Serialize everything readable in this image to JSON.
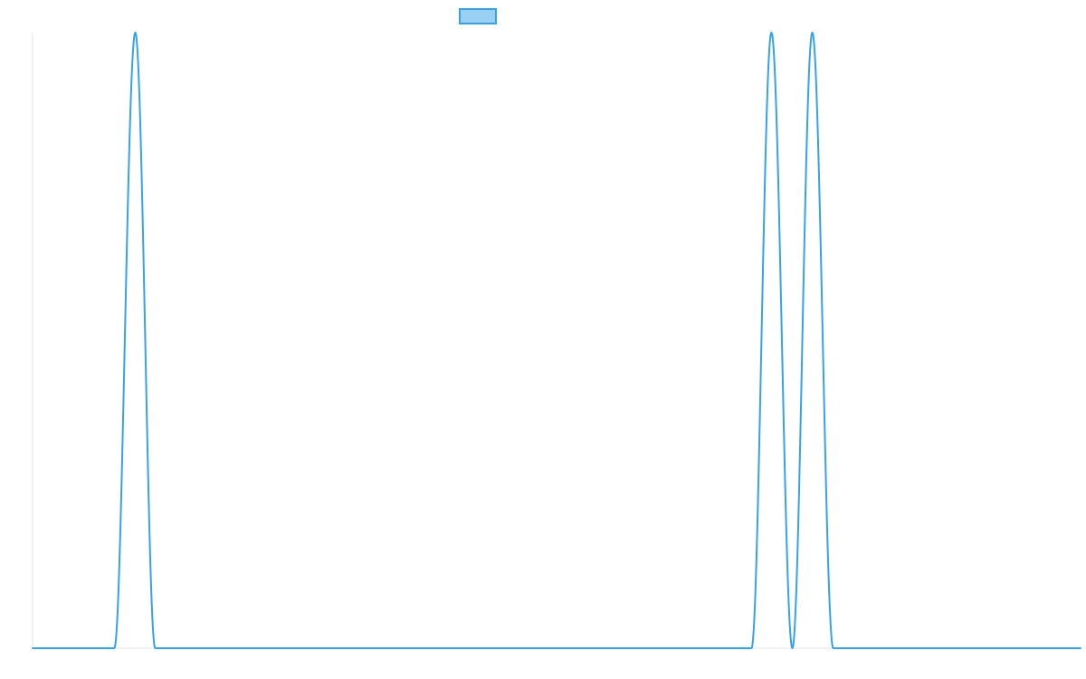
{
  "chart_data": {
    "type": "line",
    "title": "",
    "xlabel": "",
    "ylabel": "",
    "grid": false,
    "legend": {
      "placement": "top-center",
      "swatch_fill": "#9bd0f5",
      "swatch_stroke": "#36a2eb"
    },
    "xlim": [
      0,
      100
    ],
    "ylim": [
      0,
      1
    ],
    "series": [
      {
        "color": "#36a2eb",
        "points": [
          {
            "x": 0,
            "y": 0
          },
          {
            "x": 7.8,
            "y": 0
          },
          {
            "x": 9.8,
            "y": 1
          },
          {
            "x": 11.7,
            "y": 0
          },
          {
            "x": 68.6,
            "y": 0
          },
          {
            "x": 70.5,
            "y": 1
          },
          {
            "x": 72.5,
            "y": 0
          },
          {
            "x": 74.4,
            "y": 1
          },
          {
            "x": 76.4,
            "y": 0
          },
          {
            "x": 100,
            "y": 0
          }
        ]
      }
    ]
  }
}
